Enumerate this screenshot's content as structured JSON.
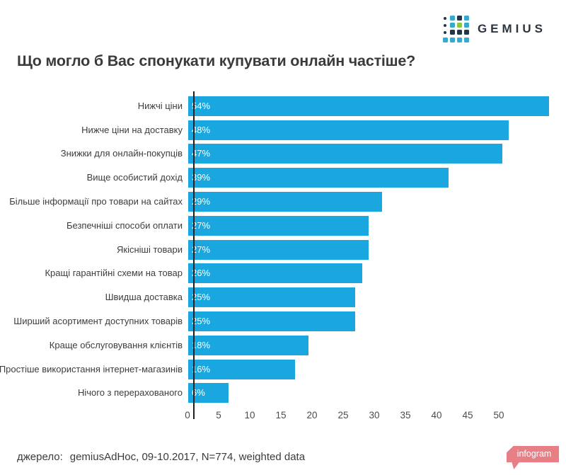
{
  "logo": {
    "wordmark": "GEMIUS",
    "dot_colors": {
      "teal": "#36a9cd",
      "dark": "#243747",
      "green": "#8dc63f"
    },
    "grid": [
      [
        "dark-sm",
        "teal",
        "dark",
        "teal"
      ],
      [
        "dark-sm",
        "teal",
        "green",
        "teal"
      ],
      [
        "dark-sm",
        "dark",
        "dark",
        "dark"
      ],
      [
        "teal",
        "teal",
        "teal",
        "teal"
      ]
    ]
  },
  "title": "Що могло б Вас спонукати купувати онлайн частіше?",
  "chart_data": {
    "type": "bar",
    "orientation": "horizontal",
    "title": "Що могло б Вас спонукати купувати онлайн частіше?",
    "categories": [
      "Нижчі ціни",
      "Нижче ціни на доставку",
      "Знижки для онлайн-покупців",
      "Вище особистий дохід",
      "Більше інформації про товари на сайтах",
      "Безпечніші способи оплати",
      "Якісніші товари",
      "Кращі гарантійні схеми на товар",
      "Швидша доставка",
      "Ширший асортимент доступних товарів",
      "Краще обслуговування клієнтів",
      "Простіше використання інтернет-магазинів",
      "Нічого з перерахованого"
    ],
    "values": [
      54,
      48,
      47,
      39,
      29,
      27,
      27,
      26,
      25,
      25,
      18,
      16,
      6
    ],
    "data_labels": [
      "54%",
      "48%",
      "47%",
      "39%",
      "29%",
      "27%",
      "27%",
      "26%",
      "25%",
      "25%",
      "18%",
      "16%",
      "6%"
    ],
    "x_ticks": [
      0,
      5,
      10,
      15,
      20,
      25,
      30,
      35,
      40,
      45,
      50
    ],
    "xlim": [
      0,
      54
    ],
    "bar_color": "#1aa7e0",
    "value_label_color": "#ffffff",
    "grid": false,
    "legend": false
  },
  "footer": {
    "source_label": "джерело:",
    "source_text": "gemiusAdHoc, 09-10.2017, N=774, weighted data"
  },
  "badge": {
    "label": "infogram",
    "color": "#e87f86"
  }
}
